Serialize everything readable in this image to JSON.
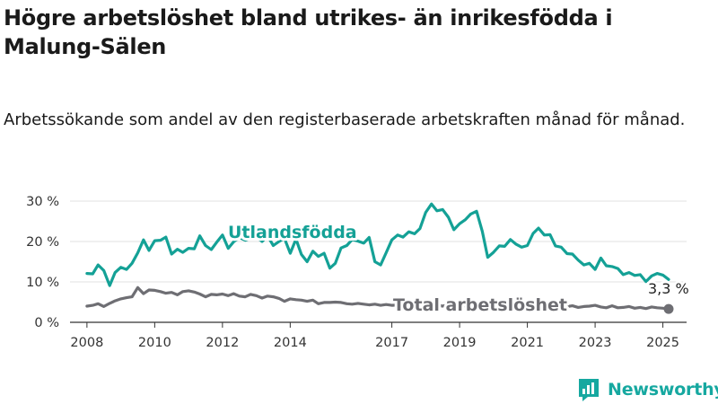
{
  "title": "Högre arbetslöshet bland utrikes- än inrikesfödda i Malung-Sälen",
  "subtitle": "Arbetssökande som andel av den registerbaserade arbetskraften månad för månad.",
  "brand": {
    "name": "Newsworthy",
    "color": "#16a8a0"
  },
  "chart_data": {
    "type": "line",
    "ylim": [
      0,
      30
    ],
    "y_ticks": [
      0,
      10,
      20,
      30
    ],
    "y_tick_labels": [
      "0 %",
      "10 %",
      "20 %",
      "30 %"
    ],
    "x_ticks": [
      2008,
      2010,
      2012,
      2014,
      2017,
      2019,
      2021,
      2023,
      2025
    ],
    "x_tick_labels": [
      "2008",
      "2010",
      "2012",
      "2014",
      "2017",
      "2019",
      "2021",
      "2023",
      "2025"
    ],
    "grid": "horizontal",
    "legend": "inline labels",
    "end_label": "3,3 %",
    "series": [
      {
        "name": "Utlandsfödda",
        "color": "#14a196",
        "points": [
          [
            2008.0,
            12.1
          ],
          [
            2008.17,
            12.0
          ],
          [
            2008.33,
            14.2
          ],
          [
            2008.5,
            12.8
          ],
          [
            2008.67,
            9.1
          ],
          [
            2008.83,
            12.3
          ],
          [
            2009.0,
            13.6
          ],
          [
            2009.17,
            13.1
          ],
          [
            2009.33,
            14.6
          ],
          [
            2009.5,
            17.2
          ],
          [
            2009.67,
            20.4
          ],
          [
            2009.83,
            17.8
          ],
          [
            2010.0,
            20.2
          ],
          [
            2010.17,
            20.3
          ],
          [
            2010.33,
            21.1
          ],
          [
            2010.5,
            16.9
          ],
          [
            2010.67,
            18.1
          ],
          [
            2010.83,
            17.3
          ],
          [
            2011.0,
            18.3
          ],
          [
            2011.17,
            18.2
          ],
          [
            2011.33,
            21.4
          ],
          [
            2011.5,
            19.0
          ],
          [
            2011.67,
            18.0
          ],
          [
            2011.83,
            19.8
          ],
          [
            2012.0,
            21.6
          ],
          [
            2012.17,
            18.3
          ],
          [
            2012.33,
            19.9
          ],
          [
            2012.5,
            21.0
          ],
          [
            2012.67,
            20.3
          ],
          [
            2012.83,
            20.8
          ],
          [
            2013.0,
            21.1
          ],
          [
            2013.17,
            20.0
          ],
          [
            2013.33,
            21.4
          ],
          [
            2013.5,
            19.0
          ],
          [
            2013.67,
            20.0
          ],
          [
            2013.83,
            20.8
          ],
          [
            2014.0,
            17.1
          ],
          [
            2014.17,
            20.6
          ],
          [
            2014.33,
            16.8
          ],
          [
            2014.5,
            15.0
          ],
          [
            2014.67,
            17.6
          ],
          [
            2014.83,
            16.3
          ],
          [
            2015.0,
            17.1
          ],
          [
            2015.17,
            13.4
          ],
          [
            2015.33,
            14.6
          ],
          [
            2015.5,
            18.4
          ],
          [
            2015.67,
            19.0
          ],
          [
            2015.83,
            20.5
          ],
          [
            2016.0,
            20.1
          ],
          [
            2016.17,
            19.6
          ],
          [
            2016.33,
            21.0
          ],
          [
            2016.5,
            15.0
          ],
          [
            2016.67,
            14.2
          ],
          [
            2016.83,
            17.2
          ],
          [
            2017.0,
            20.4
          ],
          [
            2017.17,
            21.6
          ],
          [
            2017.33,
            21.1
          ],
          [
            2017.5,
            22.4
          ],
          [
            2017.67,
            21.9
          ],
          [
            2017.83,
            23.2
          ],
          [
            2018.0,
            27.2
          ],
          [
            2018.17,
            29.3
          ],
          [
            2018.33,
            27.6
          ],
          [
            2018.5,
            27.9
          ],
          [
            2018.67,
            26.0
          ],
          [
            2018.83,
            22.9
          ],
          [
            2019.0,
            24.4
          ],
          [
            2019.17,
            25.4
          ],
          [
            2019.33,
            26.8
          ],
          [
            2019.5,
            27.5
          ],
          [
            2019.67,
            22.5
          ],
          [
            2019.83,
            16.1
          ],
          [
            2020.0,
            17.3
          ],
          [
            2020.17,
            18.9
          ],
          [
            2020.33,
            18.8
          ],
          [
            2020.5,
            20.5
          ],
          [
            2020.67,
            19.3
          ],
          [
            2020.83,
            18.6
          ],
          [
            2021.0,
            19.0
          ],
          [
            2021.17,
            22.0
          ],
          [
            2021.33,
            23.3
          ],
          [
            2021.5,
            21.6
          ],
          [
            2021.67,
            21.7
          ],
          [
            2021.83,
            18.9
          ],
          [
            2022.0,
            18.6
          ],
          [
            2022.17,
            17.0
          ],
          [
            2022.33,
            16.9
          ],
          [
            2022.5,
            15.4
          ],
          [
            2022.67,
            14.2
          ],
          [
            2022.83,
            14.6
          ],
          [
            2023.0,
            13.1
          ],
          [
            2023.17,
            15.9
          ],
          [
            2023.33,
            14.0
          ],
          [
            2023.5,
            13.8
          ],
          [
            2023.67,
            13.3
          ],
          [
            2023.83,
            11.8
          ],
          [
            2024.0,
            12.3
          ],
          [
            2024.17,
            11.6
          ],
          [
            2024.33,
            11.8
          ],
          [
            2024.5,
            10.1
          ],
          [
            2024.67,
            11.5
          ],
          [
            2024.83,
            12.1
          ],
          [
            2025.0,
            11.7
          ],
          [
            2025.17,
            10.6
          ]
        ]
      },
      {
        "name": "Total arbetslöshet",
        "color": "#6e6e73",
        "points": [
          [
            2008.0,
            4.0
          ],
          [
            2008.17,
            4.2
          ],
          [
            2008.33,
            4.6
          ],
          [
            2008.5,
            3.9
          ],
          [
            2008.67,
            4.7
          ],
          [
            2008.83,
            5.3
          ],
          [
            2009.0,
            5.8
          ],
          [
            2009.17,
            6.1
          ],
          [
            2009.33,
            6.3
          ],
          [
            2009.5,
            8.6
          ],
          [
            2009.67,
            7.1
          ],
          [
            2009.83,
            8.0
          ],
          [
            2010.0,
            7.9
          ],
          [
            2010.17,
            7.6
          ],
          [
            2010.33,
            7.2
          ],
          [
            2010.5,
            7.4
          ],
          [
            2010.67,
            6.8
          ],
          [
            2010.83,
            7.6
          ],
          [
            2011.0,
            7.8
          ],
          [
            2011.17,
            7.5
          ],
          [
            2011.33,
            7.0
          ],
          [
            2011.5,
            6.3
          ],
          [
            2011.67,
            6.9
          ],
          [
            2011.83,
            6.8
          ],
          [
            2012.0,
            7.0
          ],
          [
            2012.17,
            6.6
          ],
          [
            2012.33,
            7.1
          ],
          [
            2012.5,
            6.5
          ],
          [
            2012.67,
            6.3
          ],
          [
            2012.83,
            6.9
          ],
          [
            2013.0,
            6.6
          ],
          [
            2013.17,
            6.0
          ],
          [
            2013.33,
            6.5
          ],
          [
            2013.5,
            6.3
          ],
          [
            2013.67,
            5.9
          ],
          [
            2013.83,
            5.2
          ],
          [
            2014.0,
            5.8
          ],
          [
            2014.17,
            5.6
          ],
          [
            2014.33,
            5.5
          ],
          [
            2014.5,
            5.2
          ],
          [
            2014.67,
            5.5
          ],
          [
            2014.83,
            4.6
          ],
          [
            2015.0,
            4.9
          ],
          [
            2015.17,
            4.9
          ],
          [
            2015.33,
            5.0
          ],
          [
            2015.5,
            4.9
          ],
          [
            2015.67,
            4.6
          ],
          [
            2015.83,
            4.5
          ],
          [
            2016.0,
            4.7
          ],
          [
            2016.17,
            4.5
          ],
          [
            2016.33,
            4.3
          ],
          [
            2016.5,
            4.5
          ],
          [
            2016.67,
            4.2
          ],
          [
            2016.83,
            4.4
          ],
          [
            2017.0,
            4.2
          ],
          [
            2017.17,
            4.3
          ],
          [
            2017.33,
            4.2
          ],
          [
            2017.5,
            4.5
          ],
          [
            2017.67,
            4.3
          ],
          [
            2017.83,
            4.1
          ],
          [
            2018.0,
            4.2
          ],
          [
            2018.17,
            4.5
          ],
          [
            2018.33,
            4.3
          ],
          [
            2018.5,
            4.0
          ],
          [
            2018.67,
            4.4
          ],
          [
            2018.83,
            4.1
          ],
          [
            2019.0,
            4.3
          ],
          [
            2019.17,
            4.0
          ],
          [
            2019.33,
            4.2
          ],
          [
            2019.5,
            4.6
          ],
          [
            2019.67,
            4.2
          ],
          [
            2019.83,
            4.4
          ],
          [
            2020.0,
            4.6
          ],
          [
            2020.17,
            4.3
          ],
          [
            2020.33,
            4.4
          ],
          [
            2020.5,
            4.2
          ],
          [
            2020.67,
            4.6
          ],
          [
            2020.83,
            4.5
          ],
          [
            2021.0,
            4.8
          ],
          [
            2021.17,
            4.4
          ],
          [
            2021.33,
            4.6
          ],
          [
            2021.5,
            4.3
          ],
          [
            2021.67,
            4.4
          ],
          [
            2021.83,
            4.2
          ],
          [
            2022.0,
            4.3
          ],
          [
            2022.17,
            3.9
          ],
          [
            2022.33,
            4.1
          ],
          [
            2022.5,
            3.7
          ],
          [
            2022.67,
            3.9
          ],
          [
            2022.83,
            4.0
          ],
          [
            2023.0,
            4.2
          ],
          [
            2023.17,
            3.8
          ],
          [
            2023.33,
            3.6
          ],
          [
            2023.5,
            4.1
          ],
          [
            2023.67,
            3.6
          ],
          [
            2023.83,
            3.7
          ],
          [
            2024.0,
            3.9
          ],
          [
            2024.17,
            3.5
          ],
          [
            2024.33,
            3.7
          ],
          [
            2024.5,
            3.4
          ],
          [
            2024.67,
            3.8
          ],
          [
            2024.83,
            3.6
          ],
          [
            2025.0,
            3.5
          ],
          [
            2025.17,
            3.3
          ]
        ]
      }
    ]
  }
}
